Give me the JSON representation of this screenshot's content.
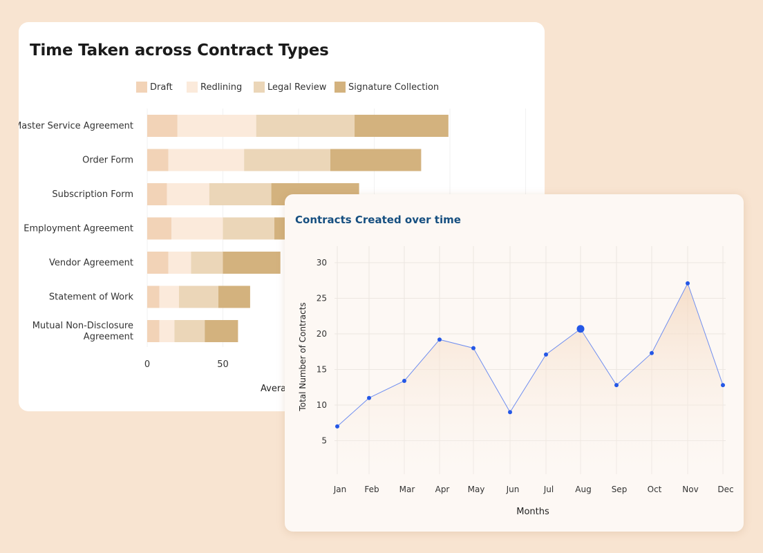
{
  "colors": {
    "draft": "#f2d3b7",
    "redlining": "#fbeadb",
    "legal_review": "#ebd6b8",
    "signature_collection": "#d3b27e",
    "line": "#6f8ef0",
    "point": "#2457e6"
  },
  "bar_chart": {
    "title": "Time Taken across Contract Types",
    "xlabel_visible": "Averag"
  },
  "line_chart": {
    "title": "Contracts Created over time"
  },
  "chart_data": [
    {
      "type": "bar",
      "stacked": true,
      "orientation": "horizontal",
      "title": "Time Taken across Contract Types",
      "xlabel": "Averag",
      "categories": [
        "Master Service Agreement",
        "Order Form",
        "Subscription Form",
        "Employment Agreement",
        "Vendor Agreement",
        "Statement of Work",
        "Mutual Non-Disclosure Agreement"
      ],
      "series": [
        {
          "name": "Draft",
          "values": [
            20,
            14,
            13,
            16,
            14,
            8,
            8
          ]
        },
        {
          "name": "Redlining",
          "values": [
            52,
            50,
            28,
            34,
            15,
            13,
            10
          ]
        },
        {
          "name": "Legal Review",
          "values": [
            65,
            57,
            41,
            34,
            21,
            26,
            20
          ]
        },
        {
          "name": "Signature Collection",
          "values": [
            62,
            60,
            58,
            30,
            38,
            21,
            22
          ]
        }
      ],
      "x_ticks": [
        "0",
        "50"
      ],
      "legend_position": "top",
      "grid": true
    },
    {
      "type": "area",
      "title": "Contracts Created over time",
      "xlabel": "Months",
      "ylabel": "Total Number of Contracts",
      "x": [
        "Jan",
        "Feb",
        "Mar",
        "Apr",
        "May",
        "Jun",
        "Jul",
        "Aug",
        "Sep",
        "Oct",
        "Nov",
        "Dec"
      ],
      "y": [
        7,
        11,
        13.4,
        19.2,
        18,
        9,
        17.1,
        20.7,
        12.8,
        17.3,
        27.1,
        12.8
      ],
      "highlighted_point": "Aug",
      "y_ticks": [
        "5",
        "10",
        "15",
        "20",
        "25",
        "30"
      ],
      "ylim": [
        0,
        32
      ],
      "grid": true
    }
  ]
}
